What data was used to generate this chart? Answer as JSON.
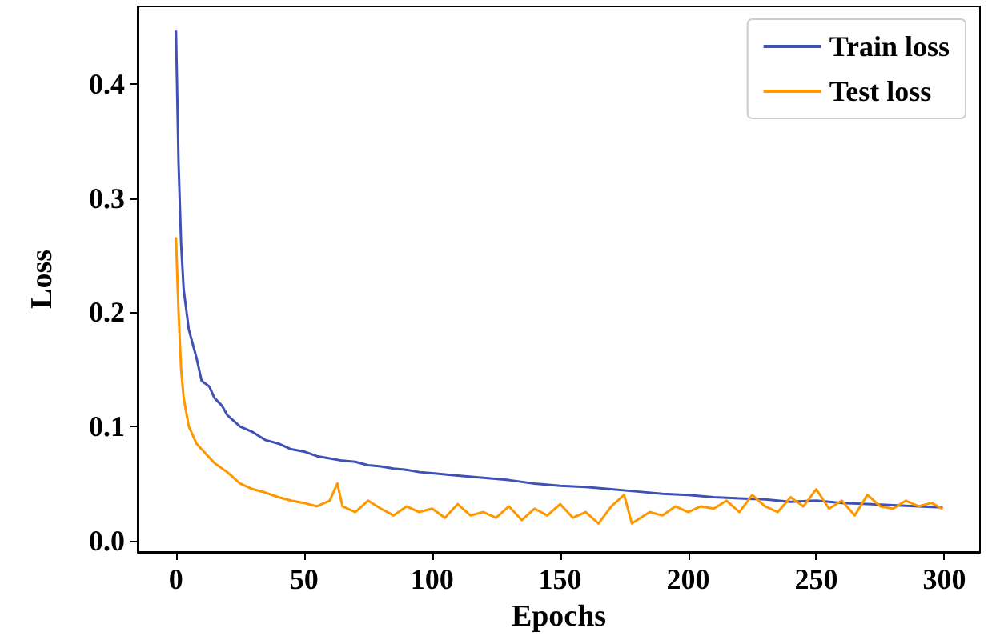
{
  "chart_data": {
    "type": "line",
    "xlabel": "Epochs",
    "ylabel": "Loss",
    "legend": "top right",
    "grid": false,
    "marker": "none",
    "line_style": "solid",
    "xlim": [
      -14.95,
      313.95
    ],
    "xticks": [
      0,
      50,
      100,
      150,
      200,
      250,
      300
    ],
    "ylim": [
      -0.01,
      0.468
    ],
    "yticks": [
      {
        "value": 0,
        "label": "0.0"
      },
      0.1,
      0.2,
      0.3,
      0.4
    ],
    "series": [
      {
        "name": "Train loss",
        "color": "#3f51b5",
        "x": [
          0,
          1,
          2,
          3,
          5,
          8,
          10,
          13,
          15,
          18,
          20,
          25,
          30,
          35,
          40,
          45,
          50,
          55,
          60,
          65,
          70,
          75,
          80,
          85,
          90,
          95,
          100,
          110,
          120,
          130,
          140,
          150,
          160,
          170,
          180,
          190,
          200,
          210,
          220,
          230,
          240,
          250,
          260,
          270,
          280,
          290,
          299
        ],
        "values": [
          0.446,
          0.33,
          0.26,
          0.22,
          0.185,
          0.16,
          0.14,
          0.135,
          0.125,
          0.118,
          0.11,
          0.1,
          0.095,
          0.088,
          0.085,
          0.08,
          0.078,
          0.074,
          0.072,
          0.07,
          0.069,
          0.066,
          0.065,
          0.063,
          0.062,
          0.06,
          0.059,
          0.057,
          0.055,
          0.053,
          0.05,
          0.048,
          0.047,
          0.045,
          0.043,
          0.041,
          0.04,
          0.038,
          0.037,
          0.036,
          0.034,
          0.035,
          0.033,
          0.032,
          0.031,
          0.03,
          0.029
        ]
      },
      {
        "name": "Test loss",
        "color": "#ff9800",
        "x": [
          0,
          1,
          2,
          3,
          5,
          8,
          10,
          15,
          20,
          25,
          30,
          35,
          40,
          45,
          50,
          55,
          60,
          63,
          65,
          70,
          75,
          80,
          85,
          90,
          95,
          100,
          105,
          110,
          115,
          120,
          125,
          130,
          135,
          140,
          145,
          150,
          155,
          160,
          165,
          170,
          175,
          178,
          185,
          190,
          195,
          200,
          205,
          210,
          215,
          220,
          225,
          230,
          235,
          240,
          245,
          250,
          255,
          260,
          265,
          270,
          275,
          280,
          285,
          290,
          295,
          299
        ],
        "values": [
          0.265,
          0.2,
          0.15,
          0.125,
          0.1,
          0.085,
          0.08,
          0.068,
          0.06,
          0.05,
          0.045,
          0.042,
          0.038,
          0.035,
          0.033,
          0.03,
          0.035,
          0.05,
          0.03,
          0.025,
          0.035,
          0.028,
          0.022,
          0.03,
          0.025,
          0.028,
          0.02,
          0.032,
          0.022,
          0.025,
          0.02,
          0.03,
          0.018,
          0.028,
          0.022,
          0.032,
          0.02,
          0.025,
          0.015,
          0.03,
          0.04,
          0.015,
          0.025,
          0.022,
          0.03,
          0.025,
          0.03,
          0.028,
          0.035,
          0.025,
          0.04,
          0.03,
          0.025,
          0.038,
          0.03,
          0.045,
          0.028,
          0.035,
          0.022,
          0.04,
          0.03,
          0.028,
          0.035,
          0.03,
          0.033,
          0.028
        ]
      }
    ]
  }
}
